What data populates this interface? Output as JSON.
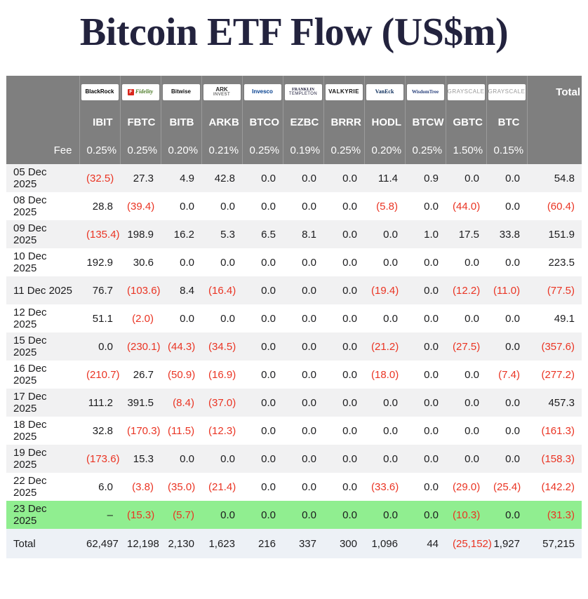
{
  "title": "Bitcoin ETF Flow (US$m)",
  "colors": {
    "title_color": "#23233e",
    "header_bg": "#7f7f7f",
    "negative": "#ea3423",
    "zebra": "#f1f1f2",
    "highlight_row": "#90ee90",
    "total_row_bg": "#edf1f6"
  },
  "chart_data": {
    "type": "table",
    "fee_label": "Fee",
    "total_label": "Total",
    "columns": [
      {
        "logo_name": "blackrock",
        "logo_text": "BlackRock",
        "logo_color": "#000000",
        "ticker": "IBIT",
        "fee": "0.25%"
      },
      {
        "logo_name": "fidelity",
        "logo_text": "Fidelity",
        "logo_color": "#4e7d2a",
        "logo_italic": true,
        "logo_serif": true,
        "badge": "F",
        "badge_bg": "#d9261c",
        "ticker": "FBTC",
        "fee": "0.25%"
      },
      {
        "logo_name": "bitwise",
        "logo_text": "Bitwise",
        "logo_color": "#101010",
        "ticker": "BITB",
        "fee": "0.20%"
      },
      {
        "logo_name": "ark-invest",
        "logo_text": "ARK",
        "logo_sub": "INVEST",
        "logo_color": "#2b2b2b",
        "ticker": "ARKB",
        "fee": "0.21%"
      },
      {
        "logo_name": "invesco",
        "logo_text": "Invesco",
        "logo_color": "#05408f",
        "ticker": "BTCO",
        "fee": "0.25%"
      },
      {
        "logo_name": "franklin-templeton",
        "logo_text": "FRANKLIN",
        "logo_sub": "TEMPLETON",
        "logo_color": "#20203e",
        "logo_serif": true,
        "logo_size": "6px",
        "ticker": "EZBC",
        "fee": "0.19%"
      },
      {
        "logo_name": "valkyrie",
        "logo_text": "VALKYRIE",
        "logo_color": "#0e0e0e",
        "logo_spacing": "0.5px",
        "ticker": "BRRR",
        "fee": "0.25%"
      },
      {
        "logo_name": "vaneck",
        "logo_text": "VanEck",
        "logo_color": "#0b2d5b",
        "logo_serif": true,
        "ticker": "HODL",
        "fee": "0.20%"
      },
      {
        "logo_name": "wisdomtree",
        "logo_text": "WisdomTree",
        "logo_color": "#29417c",
        "logo_serif": true,
        "logo_size": "7px",
        "ticker": "BTCW",
        "fee": "0.25%"
      },
      {
        "logo_name": "grayscale",
        "logo_text": "GRAYSCALE",
        "logo_color": "#9a9a9a",
        "logo_spacing": "0.5px",
        "logo_weight": "400",
        "ticker": "GBTC",
        "fee": "1.50%"
      },
      {
        "logo_name": "grayscale",
        "logo_text": "GRAYSCALE",
        "logo_color": "#9a9a9a",
        "logo_spacing": "0.5px",
        "logo_weight": "400",
        "ticker": "BTC",
        "fee": "0.15%"
      }
    ],
    "rows": [
      {
        "date": "05 Dec 2025",
        "values": [
          "(32.5)",
          "27.3",
          "4.9",
          "42.8",
          "0.0",
          "0.0",
          "0.0",
          "11.4",
          "0.9",
          "0.0",
          "0.0"
        ],
        "total": "54.8"
      },
      {
        "date": "08 Dec 2025",
        "values": [
          "28.8",
          "(39.4)",
          "0.0",
          "0.0",
          "0.0",
          "0.0",
          "0.0",
          "(5.8)",
          "0.0",
          "(44.0)",
          "0.0"
        ],
        "total": "(60.4)"
      },
      {
        "date": "09 Dec 2025",
        "values": [
          "(135.4)",
          "198.9",
          "16.2",
          "5.3",
          "6.5",
          "8.1",
          "0.0",
          "0.0",
          "1.0",
          "17.5",
          "33.8"
        ],
        "total": "151.9"
      },
      {
        "date": "10 Dec 2025",
        "values": [
          "192.9",
          "30.6",
          "0.0",
          "0.0",
          "0.0",
          "0.0",
          "0.0",
          "0.0",
          "0.0",
          "0.0",
          "0.0"
        ],
        "total": "223.5"
      },
      {
        "date": "11 Dec 2025",
        "values": [
          "76.7",
          "(103.6)",
          "8.4",
          "(16.4)",
          "0.0",
          "0.0",
          "0.0",
          "(19.4)",
          "0.0",
          "(12.2)",
          "(11.0)"
        ],
        "total": "(77.5)"
      },
      {
        "date": "12 Dec 2025",
        "values": [
          "51.1",
          "(2.0)",
          "0.0",
          "0.0",
          "0.0",
          "0.0",
          "0.0",
          "0.0",
          "0.0",
          "0.0",
          "0.0"
        ],
        "total": "49.1"
      },
      {
        "date": "15 Dec 2025",
        "values": [
          "0.0",
          "(230.1)",
          "(44.3)",
          "(34.5)",
          "0.0",
          "0.0",
          "0.0",
          "(21.2)",
          "0.0",
          "(27.5)",
          "0.0"
        ],
        "total": "(357.6)"
      },
      {
        "date": "16 Dec 2025",
        "values": [
          "(210.7)",
          "26.7",
          "(50.9)",
          "(16.9)",
          "0.0",
          "0.0",
          "0.0",
          "(18.0)",
          "0.0",
          "0.0",
          "(7.4)"
        ],
        "total": "(277.2)"
      },
      {
        "date": "17 Dec 2025",
        "values": [
          "111.2",
          "391.5",
          "(8.4)",
          "(37.0)",
          "0.0",
          "0.0",
          "0.0",
          "0.0",
          "0.0",
          "0.0",
          "0.0"
        ],
        "total": "457.3"
      },
      {
        "date": "18 Dec 2025",
        "values": [
          "32.8",
          "(170.3)",
          "(11.5)",
          "(12.3)",
          "0.0",
          "0.0",
          "0.0",
          "0.0",
          "0.0",
          "0.0",
          "0.0"
        ],
        "total": "(161.3)"
      },
      {
        "date": "19 Dec 2025",
        "values": [
          "(173.6)",
          "15.3",
          "0.0",
          "0.0",
          "0.0",
          "0.0",
          "0.0",
          "0.0",
          "0.0",
          "0.0",
          "0.0"
        ],
        "total": "(158.3)"
      },
      {
        "date": "22 Dec 2025",
        "values": [
          "6.0",
          "(3.8)",
          "(35.0)",
          "(21.4)",
          "0.0",
          "0.0",
          "0.0",
          "(33.6)",
          "0.0",
          "(29.0)",
          "(25.4)"
        ],
        "total": "(142.2)"
      },
      {
        "date": "23 Dec 2025",
        "highlight": true,
        "values": [
          "–",
          "(15.3)",
          "(5.7)",
          "0.0",
          "0.0",
          "0.0",
          "0.0",
          "0.0",
          "0.0",
          "(10.3)",
          "0.0"
        ],
        "total": "(31.3)"
      }
    ],
    "total_row": {
      "label": "Total",
      "values": [
        "62,497",
        "12,198",
        "2,130",
        "1,623",
        "216",
        "337",
        "300",
        "1,096",
        "44",
        "(25,152)",
        "1,927"
      ],
      "total": "57,215"
    }
  }
}
